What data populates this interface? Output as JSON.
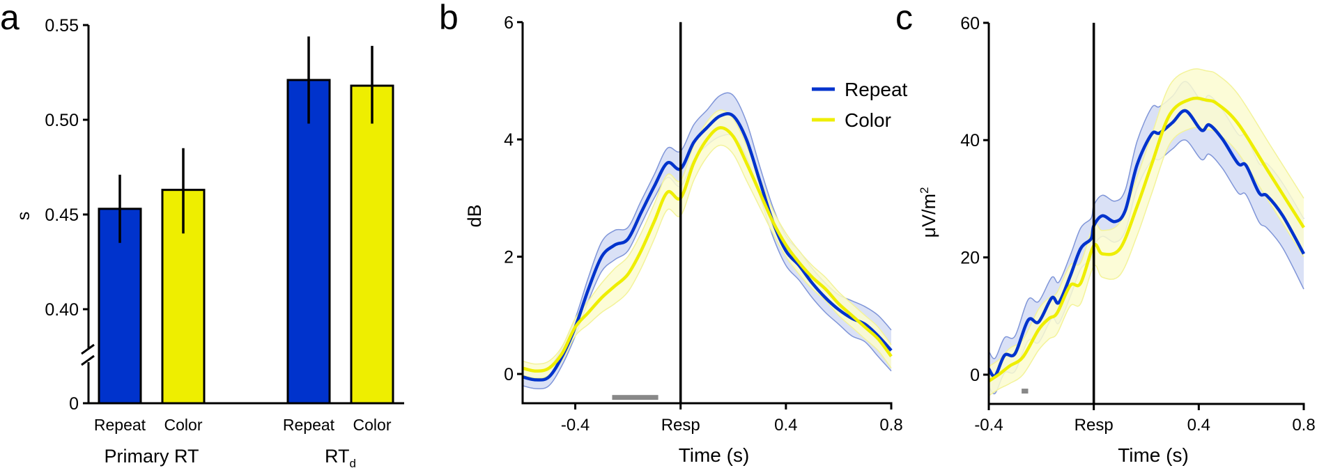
{
  "colors": {
    "repeat": "#0033cc",
    "repeat_band": "#d3dcf4",
    "repeat_band_edge": "#7f95d8",
    "color": "#eeee00",
    "color_band": "#fbfbd0",
    "color_band_edge": "#f3f39a",
    "sig_bar": "#888888",
    "axis": "#000000"
  },
  "chart_data": [
    {
      "panel": "a",
      "type": "bar",
      "ylabel": "s",
      "ylim": [
        0.38,
        0.55
      ],
      "axis_break": true,
      "yticks": [
        "0",
        "0.40",
        "0.45",
        "0.50",
        "0.55"
      ],
      "ytick_values": [
        0,
        0.4,
        0.45,
        0.5,
        0.55
      ],
      "groups": [
        {
          "label": "Primary RT",
          "bars": [
            {
              "name": "Repeat",
              "value": 0.453,
              "err_low": 0.435,
              "err_high": 0.471
            },
            {
              "name": "Color",
              "value": 0.463,
              "err_low": 0.44,
              "err_high": 0.485
            }
          ]
        },
        {
          "label": "RT",
          "label_sub": "d",
          "bars": [
            {
              "name": "Repeat",
              "value": 0.521,
              "err_low": 0.498,
              "err_high": 0.544
            },
            {
              "name": "Color",
              "value": 0.518,
              "err_low": 0.498,
              "err_high": 0.539
            }
          ]
        }
      ]
    },
    {
      "panel": "b",
      "type": "line",
      "xlabel": "Time (s)",
      "ylabel": "dB",
      "xlim": [
        -0.6,
        0.8
      ],
      "ylim": [
        -0.58,
        6
      ],
      "xticks": [
        {
          "v": -0.4,
          "label": "-0.4"
        },
        {
          "v": 0,
          "label": "Resp"
        },
        {
          "v": 0.4,
          "label": "0.4"
        },
        {
          "v": 0.8,
          "label": "0.8"
        }
      ],
      "yticks": [
        {
          "v": 0,
          "label": "0"
        },
        {
          "v": 2,
          "label": "2"
        },
        {
          "v": 4,
          "label": "4"
        },
        {
          "v": 6,
          "label": "6"
        }
      ],
      "vline": 0,
      "legend": {
        "position": "top-right",
        "entries": [
          "Repeat",
          "Color"
        ]
      },
      "sig_bars": [
        [
          -0.26,
          -0.085
        ]
      ],
      "sig_y": -0.4,
      "series": [
        {
          "name": "Repeat",
          "x": [
            -0.6,
            -0.55,
            -0.5,
            -0.45,
            -0.4,
            -0.35,
            -0.3,
            -0.25,
            -0.2,
            -0.15,
            -0.1,
            -0.05,
            0,
            0.05,
            0.1,
            0.15,
            0.2,
            0.25,
            0.3,
            0.35,
            0.4,
            0.45,
            0.5,
            0.55,
            0.6,
            0.65,
            0.7,
            0.75,
            0.8
          ],
          "y": [
            -0.05,
            -0.1,
            -0.05,
            0.3,
            0.8,
            1.45,
            2.0,
            2.2,
            2.3,
            2.75,
            3.2,
            3.6,
            3.5,
            3.95,
            4.2,
            4.4,
            4.4,
            4.0,
            3.3,
            2.6,
            2.1,
            1.85,
            1.55,
            1.3,
            1.1,
            0.95,
            0.85,
            0.65,
            0.4
          ],
          "err": [
            0.15,
            0.15,
            0.15,
            0.15,
            0.15,
            0.2,
            0.25,
            0.25,
            0.2,
            0.2,
            0.2,
            0.25,
            0.3,
            0.3,
            0.3,
            0.35,
            0.35,
            0.3,
            0.25,
            0.25,
            0.25,
            0.25,
            0.25,
            0.25,
            0.25,
            0.3,
            0.3,
            0.35,
            0.35
          ]
        },
        {
          "name": "Color",
          "x": [
            -0.6,
            -0.55,
            -0.5,
            -0.45,
            -0.4,
            -0.35,
            -0.3,
            -0.25,
            -0.2,
            -0.15,
            -0.1,
            -0.05,
            0,
            0.05,
            0.1,
            0.15,
            0.2,
            0.25,
            0.3,
            0.35,
            0.4,
            0.45,
            0.5,
            0.55,
            0.6,
            0.65,
            0.7,
            0.75,
            0.8
          ],
          "y": [
            0.1,
            0.05,
            0.1,
            0.35,
            0.8,
            1.05,
            1.3,
            1.5,
            1.7,
            2.1,
            2.6,
            3.1,
            3.0,
            3.6,
            4.0,
            4.2,
            4.05,
            3.6,
            3.1,
            2.6,
            2.2,
            1.9,
            1.65,
            1.45,
            1.2,
            1.0,
            0.8,
            0.6,
            0.3
          ],
          "err": [
            0.12,
            0.12,
            0.12,
            0.12,
            0.15,
            0.2,
            0.25,
            0.3,
            0.3,
            0.3,
            0.3,
            0.3,
            0.3,
            0.3,
            0.3,
            0.3,
            0.3,
            0.3,
            0.25,
            0.2,
            0.2,
            0.2,
            0.2,
            0.2,
            0.2,
            0.2,
            0.2,
            0.2,
            0.2
          ]
        }
      ]
    },
    {
      "panel": "c",
      "type": "line",
      "xlabel": "Time (s)",
      "ylabel": "μV/m",
      "ylabel_sup": "2",
      "xlim": [
        -0.4,
        0.8
      ],
      "ylim": [
        -5,
        60
      ],
      "xticks": [
        {
          "v": -0.4,
          "label": "-0.4"
        },
        {
          "v": 0,
          "label": "Resp"
        },
        {
          "v": 0.4,
          "label": "0.4"
        },
        {
          "v": 0.8,
          "label": "0.8"
        }
      ],
      "yticks": [
        {
          "v": 0,
          "label": "0"
        },
        {
          "v": 20,
          "label": "20"
        },
        {
          "v": 40,
          "label": "40"
        },
        {
          "v": 60,
          "label": "60"
        }
      ],
      "vline": 0,
      "sig_bars": [
        [
          -0.275,
          -0.25
        ]
      ],
      "sig_y": -2.8,
      "series": [
        {
          "name": "Repeat",
          "x": [
            -0.4,
            -0.376,
            -0.34,
            -0.3,
            -0.25,
            -0.21,
            -0.16,
            -0.133,
            -0.09,
            -0.05,
            -0.01,
            0,
            0.033,
            0.081,
            0.12,
            0.165,
            0.22,
            0.25,
            0.3,
            0.35,
            0.41,
            0.44,
            0.49,
            0.55,
            0.58,
            0.63,
            0.66,
            0.72,
            0.8
          ],
          "y": [
            1.0,
            -0.2,
            3.3,
            3.6,
            9.3,
            9.0,
            13.1,
            12.3,
            16.8,
            21.5,
            23.2,
            25.4,
            27.1,
            26.1,
            28.0,
            35.8,
            41.0,
            41.2,
            43.0,
            45.0,
            41.7,
            42.6,
            40.2,
            36.0,
            35.7,
            31.0,
            30.5,
            27.1,
            20.6
          ],
          "err": [
            3,
            3,
            3,
            3,
            3.5,
            3.5,
            3.5,
            3.5,
            3.5,
            3.5,
            3.5,
            3.5,
            3.5,
            3.5,
            3.5,
            4,
            4.5,
            4.5,
            4.5,
            5,
            5,
            5,
            5,
            5,
            5,
            5,
            5.5,
            5.5,
            6
          ]
        },
        {
          "name": "Color",
          "x": [
            -0.4,
            -0.36,
            -0.32,
            -0.27,
            -0.21,
            -0.17,
            -0.14,
            -0.09,
            -0.05,
            0,
            0.033,
            0.1,
            0.165,
            0.22,
            0.29,
            0.37,
            0.43,
            0.47,
            0.55,
            0.67,
            0.8
          ],
          "y": [
            -1.1,
            0.1,
            1.5,
            3.0,
            7.7,
            9.6,
            10.5,
            15.2,
            15.6,
            22.0,
            20.6,
            21.5,
            28.7,
            35.8,
            44.4,
            47.0,
            46.8,
            46.2,
            42.8,
            34.3,
            25.1
          ],
          "err": [
            2.5,
            2.5,
            3,
            3,
            3.5,
            3.5,
            3.5,
            3.5,
            3.5,
            3.5,
            4,
            4.5,
            5,
            5,
            5,
            5,
            5,
            5,
            5,
            5,
            5
          ]
        }
      ]
    }
  ],
  "panel_labels": [
    "a",
    "b",
    "c"
  ]
}
